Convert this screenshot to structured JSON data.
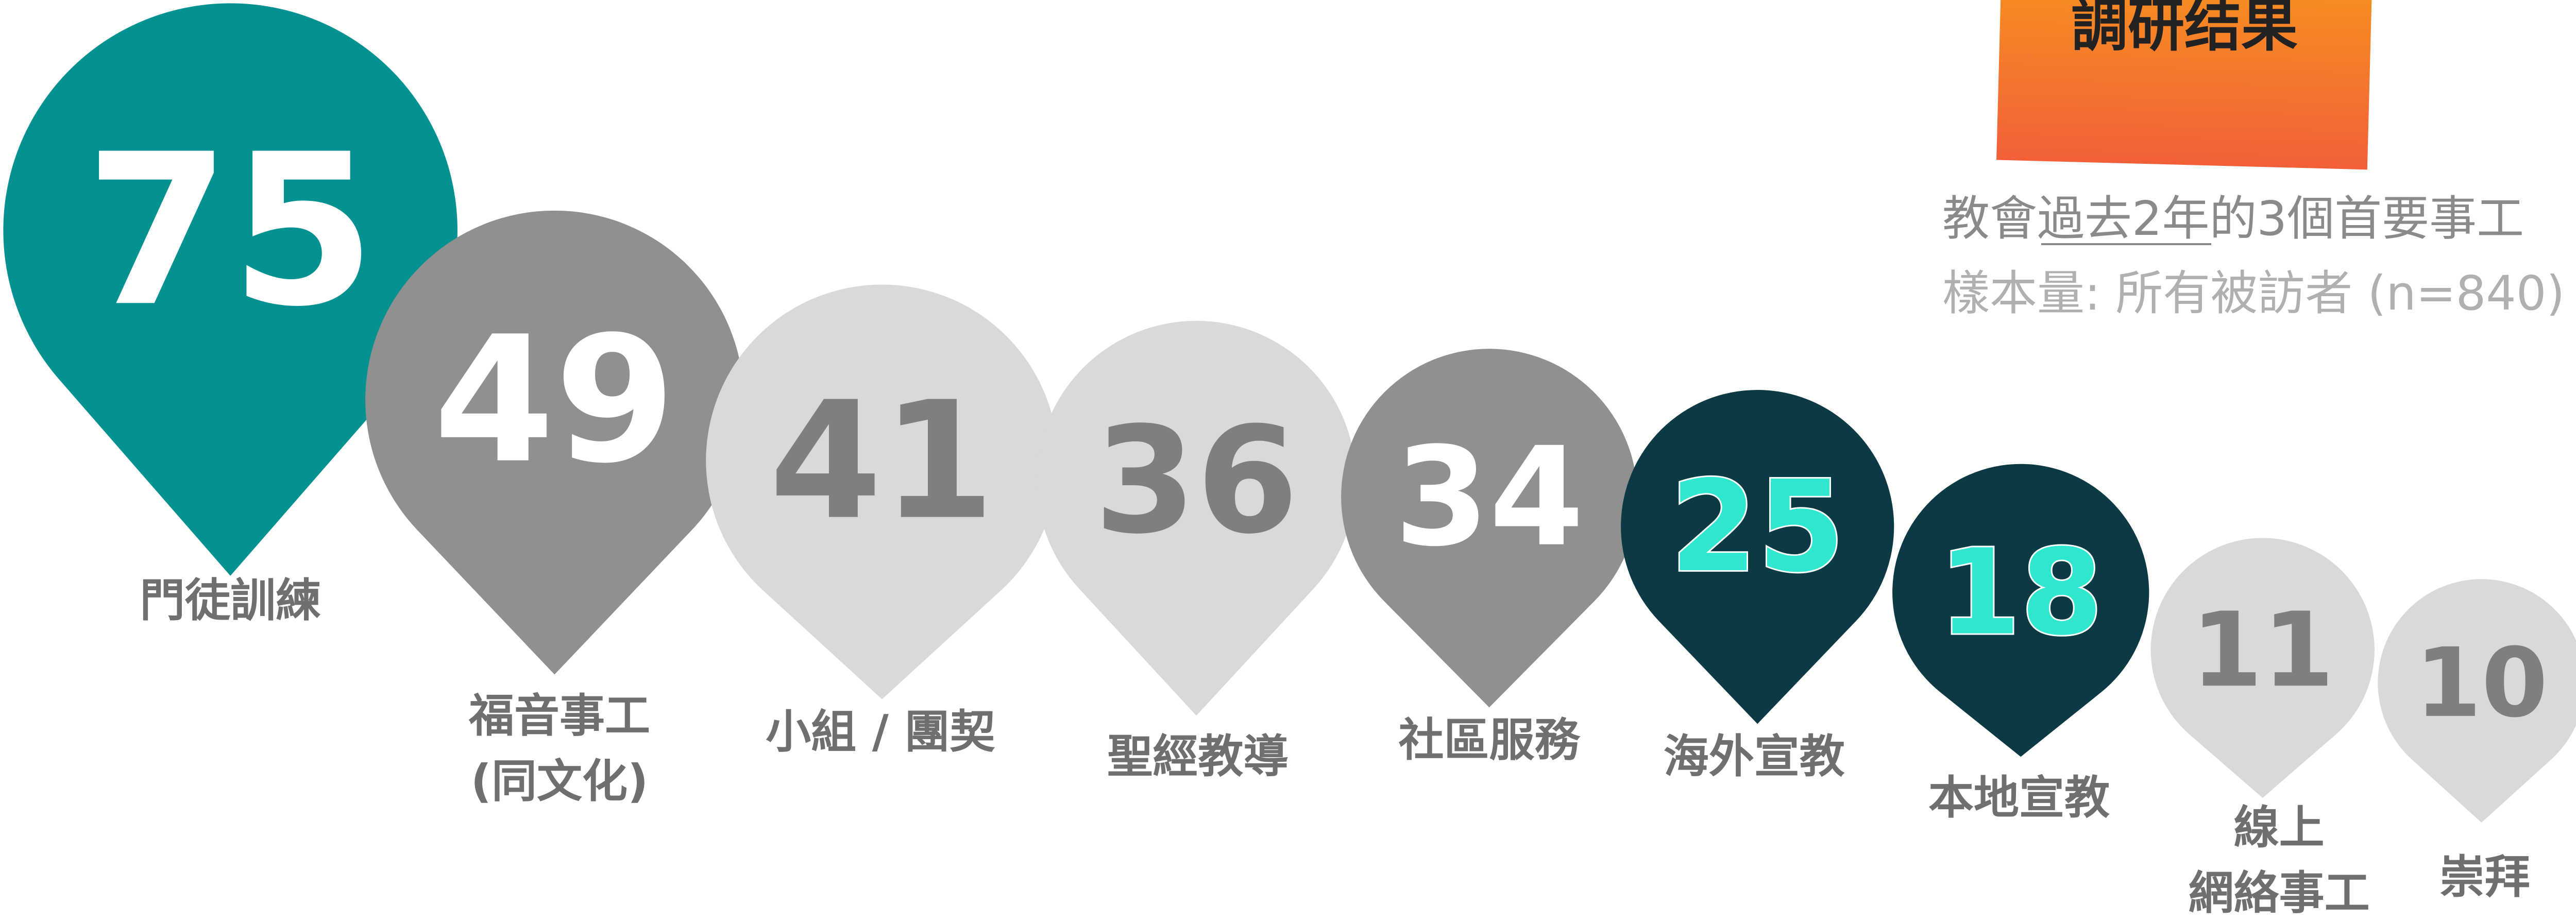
{
  "chart_data": {
    "type": "pin",
    "title": "調研结果",
    "subtitle": [
      "教會過去2年的3個首要事工",
      "樣本量: 所有被訪者 (n=840)"
    ],
    "categories": [
      "門徒訓練",
      "福音事工\n(同文化)",
      "小組 / 團契",
      "聖經教導",
      "社區服務",
      "海外宣教",
      "本地宣教",
      "線上\n網絡事工",
      "崇拜"
    ],
    "values": [
      75,
      49,
      41,
      36,
      34,
      25,
      18,
      11,
      10
    ],
    "colors": [
      "#049191",
      "#909090",
      "#d9d9d9",
      "#d9d9d9",
      "#909090",
      "#0b3a44",
      "#0b3a44",
      "#d9d9d9",
      "#d9d9d9"
    ],
    "label_colors": [
      "#ffffff",
      "#ffffff",
      "#7f7f7f",
      "#7f7f7f",
      "#ffffff",
      "#2fe6cf",
      "#2fe6cf",
      "#7f7f7f",
      "#7f7f7f"
    ]
  }
}
